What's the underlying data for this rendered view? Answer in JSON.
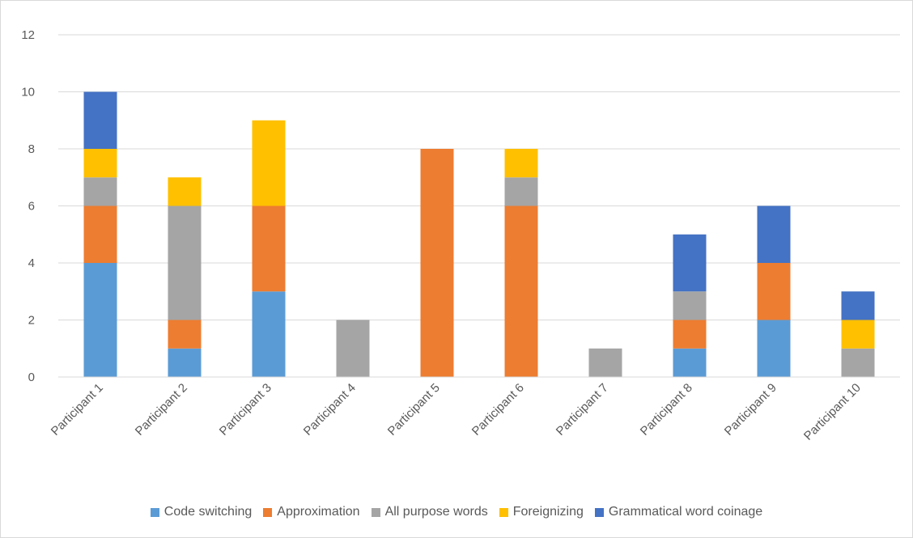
{
  "chart_data": {
    "type": "bar",
    "stacked": true,
    "categories": [
      "Participant 1",
      "Participant 2",
      "Participant 3",
      "Participant 4",
      "Participant 5",
      "Participant 6",
      "Participant 7",
      "Participant 8",
      "Participant 9",
      "Participant 10"
    ],
    "series": [
      {
        "name": "Code switching",
        "color": "#5b9bd5",
        "values": [
          4,
          1,
          3,
          0,
          0,
          0,
          0,
          1,
          2,
          0
        ]
      },
      {
        "name": "Approximation",
        "color": "#ed7d31",
        "values": [
          2,
          1,
          3,
          0,
          8,
          6,
          0,
          1,
          2,
          0
        ]
      },
      {
        "name": "All purpose words",
        "color": "#a5a5a5",
        "values": [
          1,
          4,
          0,
          2,
          0,
          1,
          1,
          1,
          0,
          1
        ]
      },
      {
        "name": "Foreignizing",
        "color": "#ffc000",
        "values": [
          1,
          1,
          3,
          0,
          0,
          1,
          0,
          0,
          0,
          1
        ]
      },
      {
        "name": "Grammatical word coinage",
        "color": "#4472c4",
        "values": [
          2,
          0,
          0,
          0,
          0,
          0,
          0,
          2,
          2,
          1
        ]
      }
    ],
    "ylim": [
      0,
      12
    ],
    "yticks": [
      0,
      2,
      4,
      6,
      8,
      10,
      12
    ],
    "grid": true,
    "legend_position": "bottom",
    "title": "",
    "xlabel": "",
    "ylabel": ""
  }
}
